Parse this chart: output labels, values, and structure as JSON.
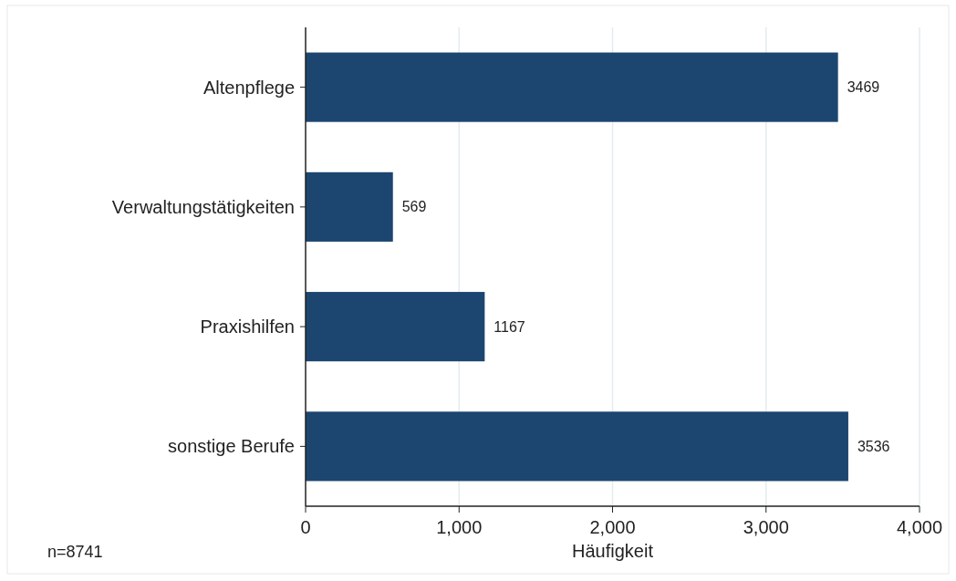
{
  "chart_data": {
    "type": "bar",
    "orientation": "horizontal",
    "xlabel": "Häufigkeit",
    "categories": [
      "Altenpflege",
      "Verwaltungstätigkeiten",
      "Praxishilfen",
      "sonstige Berufe"
    ],
    "values": [
      3469,
      569,
      1167,
      3536
    ],
    "color": "#1c4670",
    "xlim": [
      0,
      4000
    ],
    "xticks": [
      0,
      {
        "value": 1000,
        "label": "1,000"
      },
      {
        "value": 2000,
        "label": "2,000"
      },
      {
        "value": 3000,
        "label": "3,000"
      },
      {
        "value": 4000,
        "label": "4,000"
      }
    ],
    "grid": "x",
    "data_labels": true,
    "annotations": [
      "n=8741"
    ]
  }
}
